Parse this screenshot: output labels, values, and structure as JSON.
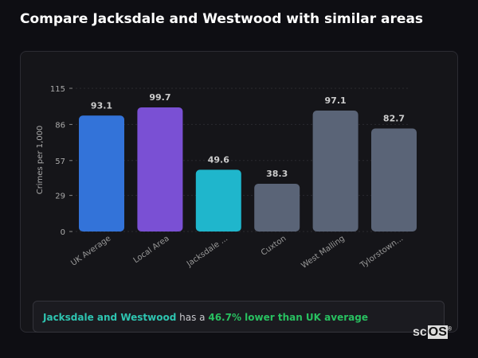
{
  "title": "Compare Jacksdale and Westwood with similar areas",
  "chart_data": {
    "type": "bar",
    "title": "",
    "ylabel": "Crimes per 1,000",
    "xlabel": "",
    "ylim": [
      0,
      115
    ],
    "yticks": [
      0,
      29,
      57,
      86,
      115
    ],
    "grid": true,
    "categories": [
      "UK Average",
      "Local Area",
      "Jacksdale ...",
      "Cuxton",
      "West Malling",
      "Tylorstown..."
    ],
    "values": [
      93.1,
      99.7,
      49.6,
      38.3,
      97.1,
      82.7
    ],
    "value_labels": [
      "93.1",
      "99.7",
      "49.6",
      "38.3",
      "97.1",
      "82.7"
    ],
    "colors": [
      "#3373d9",
      "#7a50d4",
      "#1fb6cc",
      "#5a6477",
      "#5a6477",
      "#5a6477"
    ]
  },
  "summary": {
    "area": "Jacksdale and Westwood",
    "middle": " has a ",
    "result": "46.7% lower than UK average"
  },
  "logo": {
    "text_a": "sc",
    "text_b": "OS",
    "mark": "®"
  }
}
